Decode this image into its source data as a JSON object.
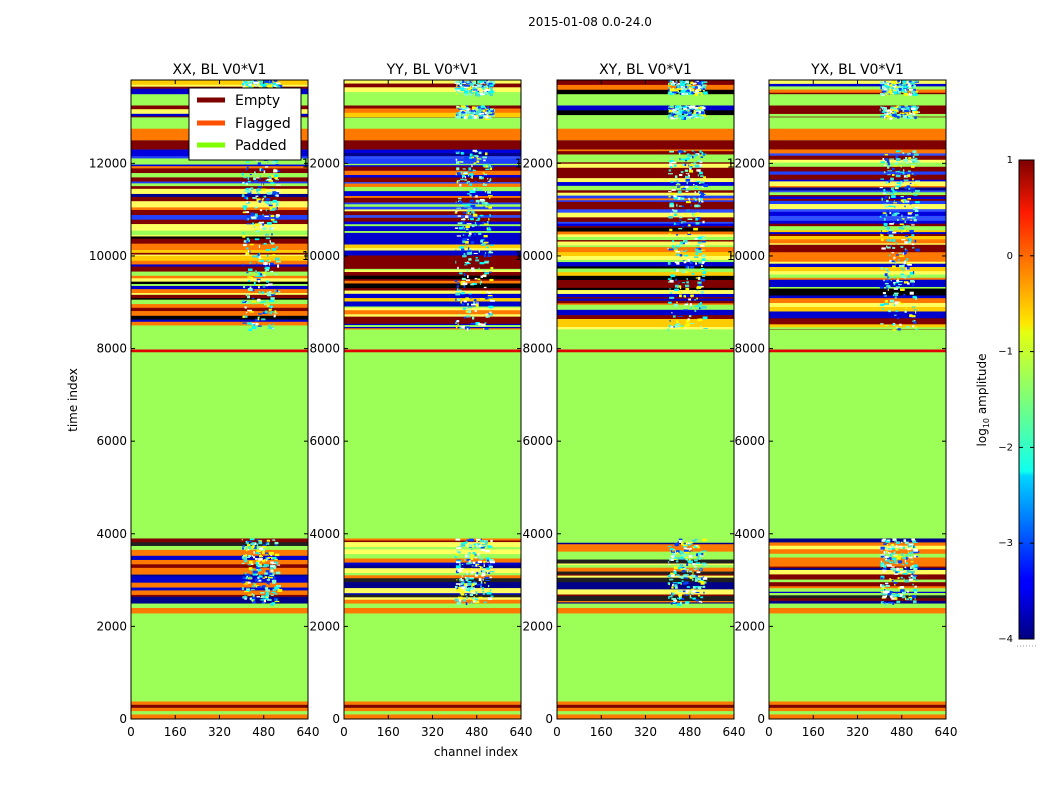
{
  "chart_data": {
    "type": "heatmap",
    "suptitle": "2015-01-08 0.0-24.0",
    "xlabel": "channel index",
    "ylabel": "time index",
    "x_range": [
      0,
      640
    ],
    "y_range": [
      0,
      13800
    ],
    "x_ticks": [
      "0",
      "160",
      "320",
      "480",
      "640"
    ],
    "x_tick_values": [
      0,
      160,
      320,
      480,
      640
    ],
    "y_ticks": [
      "0",
      "2000",
      "4000",
      "6000",
      "8000",
      "10000",
      "12000"
    ],
    "y_tick_values": [
      0,
      2000,
      4000,
      6000,
      8000,
      10000,
      12000
    ],
    "panels": [
      {
        "title": "XX, BL V0*V1"
      },
      {
        "title": "YY, BL V0*V1"
      },
      {
        "title": "XY, BL V0*V1"
      },
      {
        "title": "YX, BL V0*V1"
      }
    ],
    "legend": {
      "location": "upper-right of first panel",
      "entries": [
        {
          "label": "Empty",
          "color": "#7f0000"
        },
        {
          "label": "Flagged",
          "color": "#ff5000"
        },
        {
          "label": "Padded",
          "color": "#80ff00"
        }
      ]
    },
    "colorbar": {
      "label": "log10 amplitude",
      "label_prefix": "log",
      "label_sub": "10",
      "label_suffix": " amplitude",
      "range": [
        -4,
        1
      ],
      "ticks": [
        "1",
        "0",
        "−1",
        "−2",
        "−3",
        "−4"
      ],
      "tick_values": [
        1,
        0,
        -1,
        -2,
        -3,
        -4
      ],
      "colormap": "jet"
    },
    "colors": {
      "padded": "#9cff58",
      "flagged": "#ff7800",
      "empty": "#800000",
      "red_line": "#e00000"
    },
    "bands": [
      {
        "y0": 0,
        "y1": 100,
        "kind": "flagged"
      },
      {
        "y0": 100,
        "y1": 170,
        "kind": "padded"
      },
      {
        "y0": 170,
        "y1": 240,
        "kind": "flagged"
      },
      {
        "y0": 240,
        "y1": 310,
        "kind": "empty"
      },
      {
        "y0": 310,
        "y1": 380,
        "kind": "flagged"
      },
      {
        "y0": 380,
        "y1": 2280,
        "kind": "padded"
      },
      {
        "y0": 2280,
        "y1": 2400,
        "kind": "flagged"
      },
      {
        "y0": 2400,
        "y1": 2500,
        "kind": "padded"
      },
      {
        "y0": 2500,
        "y1": 3900,
        "kind": "data_low"
      },
      {
        "y0": 3900,
        "y1": 7920,
        "kind": "padded"
      },
      {
        "y0": 7920,
        "y1": 7980,
        "kind": "red_line"
      },
      {
        "y0": 7980,
        "y1": 8420,
        "kind": "padded"
      },
      {
        "y0": 8420,
        "y1": 10650,
        "kind": "data_mid"
      },
      {
        "y0": 10650,
        "y1": 12300,
        "kind": "data_high"
      },
      {
        "y0": 12300,
        "y1": 12500,
        "kind": "empty"
      },
      {
        "y0": 12500,
        "y1": 12750,
        "kind": "flagged"
      },
      {
        "y0": 12750,
        "y1": 13000,
        "kind": "padded"
      },
      {
        "y0": 13000,
        "y1": 13250,
        "kind": "data_mid"
      },
      {
        "y0": 13250,
        "y1": 13500,
        "kind": "padded"
      },
      {
        "y0": 13500,
        "y1": 13800,
        "kind": "data_mid"
      }
    ]
  }
}
